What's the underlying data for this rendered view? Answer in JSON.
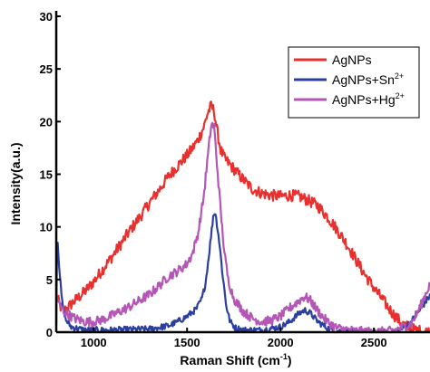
{
  "chart_data": {
    "type": "line",
    "xlabel": "Raman Shift (cm",
    "xlabel_sup": "-1",
    "xlabel_end": ")",
    "ylabel": "Intensity(a.u.)",
    "xlim": [
      800,
      2800
    ],
    "ylim": [
      0,
      30
    ],
    "x_ticks": [
      1000,
      1500,
      2000,
      2500
    ],
    "y_ticks": [
      0,
      5,
      10,
      15,
      20,
      25,
      30
    ],
    "grid": false,
    "legend_position": "top-right",
    "series": [
      {
        "name": "AgNPs",
        "legend_base": "AgNPs",
        "legend_sup": "",
        "color": "#e8302e",
        "x": [
          800,
          820,
          840,
          860,
          900,
          950,
          1000,
          1050,
          1100,
          1150,
          1200,
          1250,
          1300,
          1350,
          1400,
          1450,
          1500,
          1530,
          1560,
          1590,
          1610,
          1630,
          1645,
          1660,
          1680,
          1700,
          1750,
          1800,
          1850,
          1900,
          1950,
          2000,
          2050,
          2100,
          2150,
          2200,
          2250,
          2300,
          2350,
          2400,
          2450,
          2500,
          2550,
          2600,
          2650,
          2700,
          2750,
          2800
        ],
        "y": [
          3.5,
          2.5,
          2.0,
          2.3,
          3.0,
          3.8,
          4.8,
          6.0,
          7.2,
          8.5,
          9.8,
          11.0,
          12.3,
          13.5,
          14.8,
          15.8,
          16.8,
          17.5,
          18.3,
          19.5,
          20.8,
          21.5,
          21.0,
          19.2,
          17.3,
          16.5,
          15.5,
          14.5,
          13.6,
          13.2,
          13.0,
          12.9,
          13.0,
          12.9,
          12.5,
          12.0,
          11.0,
          9.8,
          8.5,
          7.0,
          5.5,
          4.2,
          3.0,
          1.8,
          0.8,
          0.3,
          0.1,
          0.0
        ]
      },
      {
        "name": "AgNPs+Sn2+",
        "legend_base": "AgNPs+Sn",
        "legend_sup": "2+",
        "color": "#2b3f9e",
        "x": [
          800,
          805,
          815,
          830,
          850,
          880,
          950,
          1100,
          1300,
          1400,
          1450,
          1500,
          1550,
          1580,
          1600,
          1620,
          1640,
          1650,
          1670,
          1690,
          1710,
          1730,
          1760,
          1800,
          1900,
          2000,
          2050,
          2100,
          2130,
          2160,
          2200,
          2250,
          2300,
          2400,
          2500,
          2600,
          2650,
          2700,
          2750,
          2800
        ],
        "y": [
          1.0,
          9.5,
          6.5,
          3.0,
          1.2,
          0.5,
          0.2,
          0.2,
          0.3,
          0.6,
          1.0,
          1.5,
          2.2,
          3.2,
          4.8,
          7.8,
          11.0,
          11.5,
          9.0,
          5.5,
          2.5,
          1.0,
          0.4,
          0.2,
          0.2,
          0.5,
          1.0,
          1.8,
          2.1,
          1.8,
          1.0,
          0.4,
          0.1,
          0.0,
          0.0,
          0.0,
          0.3,
          1.0,
          2.2,
          3.5
        ]
      },
      {
        "name": "AgNPs+Hg2+",
        "legend_base": "AgNPs+Hg",
        "legend_sup": "2+",
        "color": "#b456b5",
        "x": [
          800,
          820,
          850,
          900,
          950,
          1000,
          1050,
          1100,
          1200,
          1300,
          1350,
          1400,
          1450,
          1500,
          1530,
          1560,
          1590,
          1610,
          1630,
          1645,
          1660,
          1680,
          1700,
          1720,
          1750,
          1800,
          1850,
          1900,
          1950,
          2000,
          2050,
          2100,
          2130,
          2160,
          2200,
          2250,
          2300,
          2400,
          2500,
          2600,
          2700,
          2750,
          2800
        ],
        "y": [
          3.5,
          2.5,
          1.8,
          1.3,
          1.0,
          1.0,
          1.2,
          1.6,
          2.5,
          3.6,
          4.4,
          5.3,
          5.8,
          6.5,
          7.5,
          9.5,
          13.0,
          16.5,
          19.8,
          19.5,
          16.0,
          11.5,
          7.5,
          5.0,
          3.2,
          2.0,
          1.3,
          1.0,
          1.1,
          1.5,
          2.3,
          3.0,
          3.4,
          3.0,
          2.0,
          1.0,
          0.4,
          0.1,
          0.0,
          0.1,
          0.8,
          2.5,
          4.6
        ]
      }
    ]
  }
}
